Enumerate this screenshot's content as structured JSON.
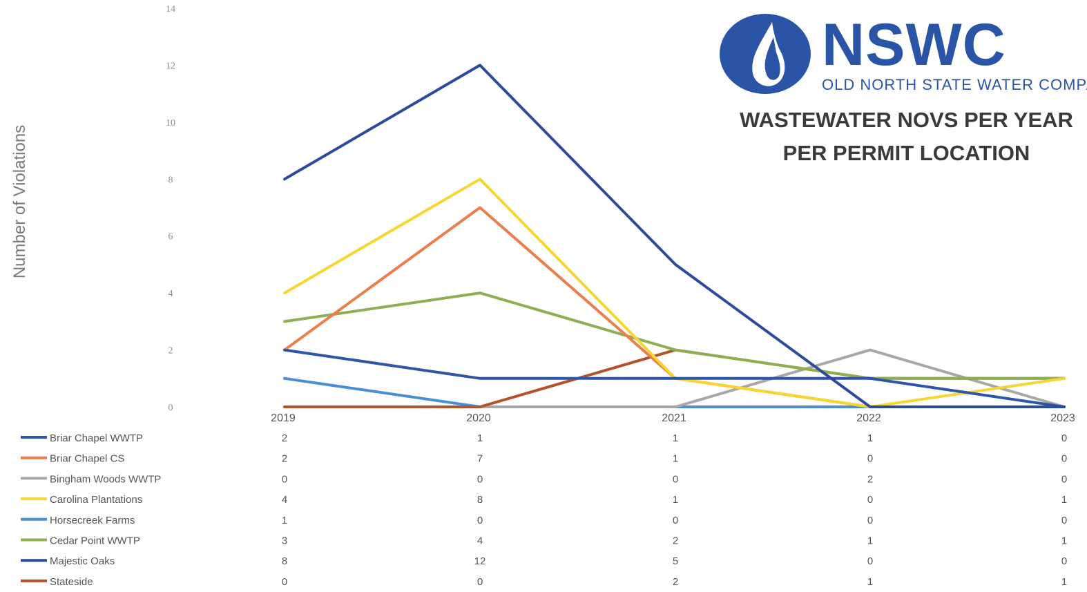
{
  "logo": {
    "name": "NSWC",
    "subtitle": "OLD NORTH STATE WATER COMPANY"
  },
  "title_lines": [
    "WASTEWATER NOVS PER YEAR",
    "PER PERMIT LOCATION"
  ],
  "colors": {
    "Briar Chapel WWTP": "#2d56a8",
    "Briar Chapel CS": "#ed7d4b",
    "Bingham Woods WWTP": "#a8a8a8",
    "Carolina Plantations": "#f7d632",
    "Horsecreek Farms": "#4a8fd6",
    "Cedar Point WWTP": "#8fae52",
    "Majestic Oaks": "#2b4c9c",
    "Stateside": "#b3522d"
  },
  "chart_data": {
    "type": "line",
    "title": "WASTEWATER NOVS PER YEAR PER PERMIT LOCATION",
    "xlabel": "",
    "ylabel": "Number of Violations",
    "categories": [
      "2019",
      "2020",
      "2021",
      "2022",
      "2023"
    ],
    "ylim": [
      0,
      14
    ],
    "yticks": [
      "0",
      "2",
      "4",
      "6",
      "8",
      "10",
      "12",
      "14"
    ],
    "grid": false,
    "legend": "data-table-below",
    "series": [
      {
        "name": "Briar Chapel WWTP",
        "values": [
          2,
          1,
          1,
          1,
          0
        ]
      },
      {
        "name": "Briar Chapel CS",
        "values": [
          2,
          7,
          1,
          0,
          0
        ]
      },
      {
        "name": "Bingham Woods WWTP",
        "values": [
          0,
          0,
          0,
          2,
          0
        ]
      },
      {
        "name": "Carolina Plantations",
        "values": [
          4,
          8,
          1,
          0,
          1
        ]
      },
      {
        "name": "Horsecreek Farms",
        "values": [
          1,
          0,
          0,
          0,
          0
        ]
      },
      {
        "name": "Cedar Point WWTP",
        "values": [
          3,
          4,
          2,
          1,
          1
        ]
      },
      {
        "name": "Majestic Oaks",
        "values": [
          8,
          12,
          5,
          0,
          0
        ]
      },
      {
        "name": "Stateside",
        "values": [
          0,
          0,
          2,
          1,
          1
        ]
      }
    ]
  }
}
